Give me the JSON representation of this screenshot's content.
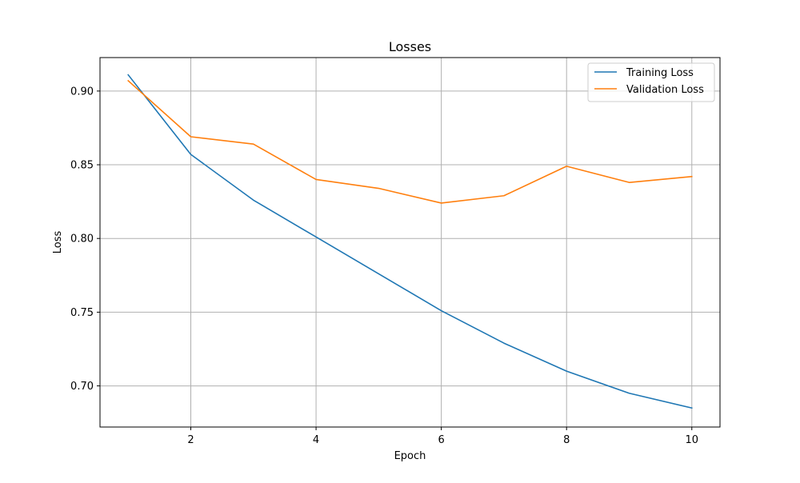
{
  "colors": {
    "training": "#1f77b4",
    "validation": "#ff7f0e",
    "grid": "#b0b0b0",
    "axes": "#000000",
    "legend_border": "#cccccc"
  },
  "chart_data": {
    "type": "line",
    "title": "Losses",
    "xlabel": "Epoch",
    "ylabel": "Loss",
    "xlim": [
      0.55,
      10.45
    ],
    "ylim": [
      0.6721,
      0.9227
    ],
    "xticks": [
      2,
      4,
      6,
      8,
      10
    ],
    "xtick_labels": [
      "2",
      "4",
      "6",
      "8",
      "10"
    ],
    "yticks": [
      0.7,
      0.75,
      0.8,
      0.85,
      0.9
    ],
    "ytick_labels": [
      "0.70",
      "0.75",
      "0.80",
      "0.85",
      "0.90"
    ],
    "grid": true,
    "legend_position": "top-right",
    "x": [
      1,
      2,
      3,
      4,
      5,
      6,
      7,
      8,
      9,
      10
    ],
    "series": [
      {
        "name": "Training Loss",
        "color_key": "training",
        "values": [
          0.911,
          0.857,
          0.826,
          0.801,
          0.776,
          0.751,
          0.729,
          0.71,
          0.695,
          0.685
        ]
      },
      {
        "name": "Validation Loss",
        "color_key": "validation",
        "values": [
          0.907,
          0.869,
          0.864,
          0.84,
          0.834,
          0.824,
          0.829,
          0.849,
          0.838,
          0.842
        ]
      }
    ]
  }
}
